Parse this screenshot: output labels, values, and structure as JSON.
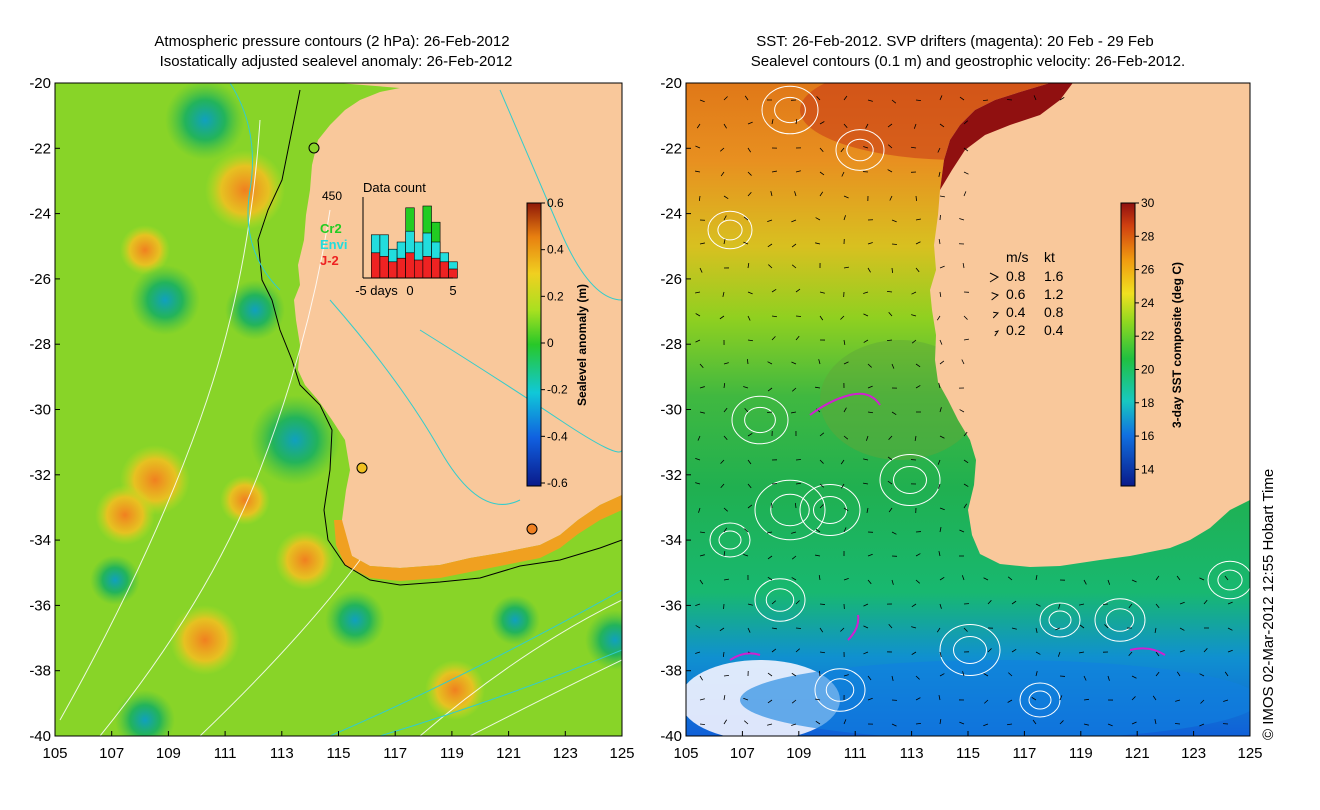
{
  "left_panel": {
    "title_line1": "Atmospheric pressure contours (2 hPa): 26-Feb-2012",
    "title_line2": "Isostatically adjusted sealevel anomaly: 26-Feb-2012",
    "lat_ticks": [
      "-20",
      "-22",
      "-24",
      "-26",
      "-28",
      "-30",
      "-32",
      "-34",
      "-36",
      "-38",
      "-40"
    ],
    "lon_ticks": [
      "105",
      "107",
      "109",
      "111",
      "113",
      "115",
      "117",
      "119",
      "121",
      "123",
      "125"
    ],
    "colorbar": {
      "label": "Sealevel anomaly (m)",
      "ticks": [
        "0.6",
        "0.4",
        "0.2",
        "0",
        "-0.2",
        "-0.4",
        "-0.6"
      ],
      "range": [
        -0.6,
        0.6
      ]
    },
    "inset": {
      "title": "Data count",
      "ymax_label": "450",
      "xlabel": "days",
      "xticks": [
        "-5",
        "0",
        "5"
      ],
      "legend": [
        {
          "label": "Cr2",
          "color": "#22cc22"
        },
        {
          "label": "Envi",
          "color": "#22dddd"
        },
        {
          "label": "J-2",
          "color": "#ee2222"
        }
      ],
      "bars": [
        {
          "day": -4,
          "cr2": 0,
          "envi": 240,
          "j2": 140
        },
        {
          "day": -3,
          "cr2": 0,
          "envi": 240,
          "j2": 120
        },
        {
          "day": -2,
          "cr2": 0,
          "envi": 160,
          "j2": 90
        },
        {
          "day": -1,
          "cr2": 0,
          "envi": 200,
          "j2": 110
        },
        {
          "day": 0,
          "cr2": 390,
          "envi": 260,
          "j2": 140
        },
        {
          "day": 1,
          "cr2": 0,
          "envi": 200,
          "j2": 100
        },
        {
          "day": 2,
          "cr2": 400,
          "envi": 250,
          "j2": 120
        },
        {
          "day": 3,
          "cr2": 310,
          "envi": 200,
          "j2": 110
        },
        {
          "day": 4,
          "cr2": 0,
          "envi": 140,
          "j2": 90
        },
        {
          "day": 5,
          "cr2": 0,
          "envi": 90,
          "j2": 50
        }
      ]
    }
  },
  "right_panel": {
    "title_line1": "SST: 26-Feb-2012. SVP drifters (magenta): 20 Feb - 29 Feb",
    "title_line2": "Sealevel contours (0.1 m) and geostrophic velocity: 26-Feb-2012.",
    "lat_ticks": [
      "-20",
      "-22",
      "-24",
      "-26",
      "-28",
      "-30",
      "-32",
      "-34",
      "-36",
      "-38",
      "-40"
    ],
    "lon_ticks": [
      "105",
      "107",
      "109",
      "111",
      "113",
      "115",
      "117",
      "119",
      "121",
      "123",
      "125"
    ],
    "colorbar": {
      "label": "3-day SST composite (deg C)",
      "ticks": [
        "30",
        "28",
        "26",
        "24",
        "22",
        "20",
        "18",
        "16",
        "14"
      ],
      "range": [
        13,
        30
      ]
    },
    "velocity_legend": {
      "header_ms": "m/s",
      "header_kt": "kt",
      "rows": [
        {
          "ms": "0.8",
          "kt": "1.6"
        },
        {
          "ms": "0.6",
          "kt": "1.2"
        },
        {
          "ms": "0.4",
          "kt": "0.8"
        },
        {
          "ms": "0.2",
          "kt": "0.4"
        }
      ]
    }
  },
  "credit": "© IMOS 02-Mar-2012 12:55 Hobart Time",
  "colors": {
    "land": "#f9c89b",
    "coast_sst_hot": "#a01010",
    "contour_cyan": "#33cccc",
    "contour_white": "#ffffff"
  }
}
